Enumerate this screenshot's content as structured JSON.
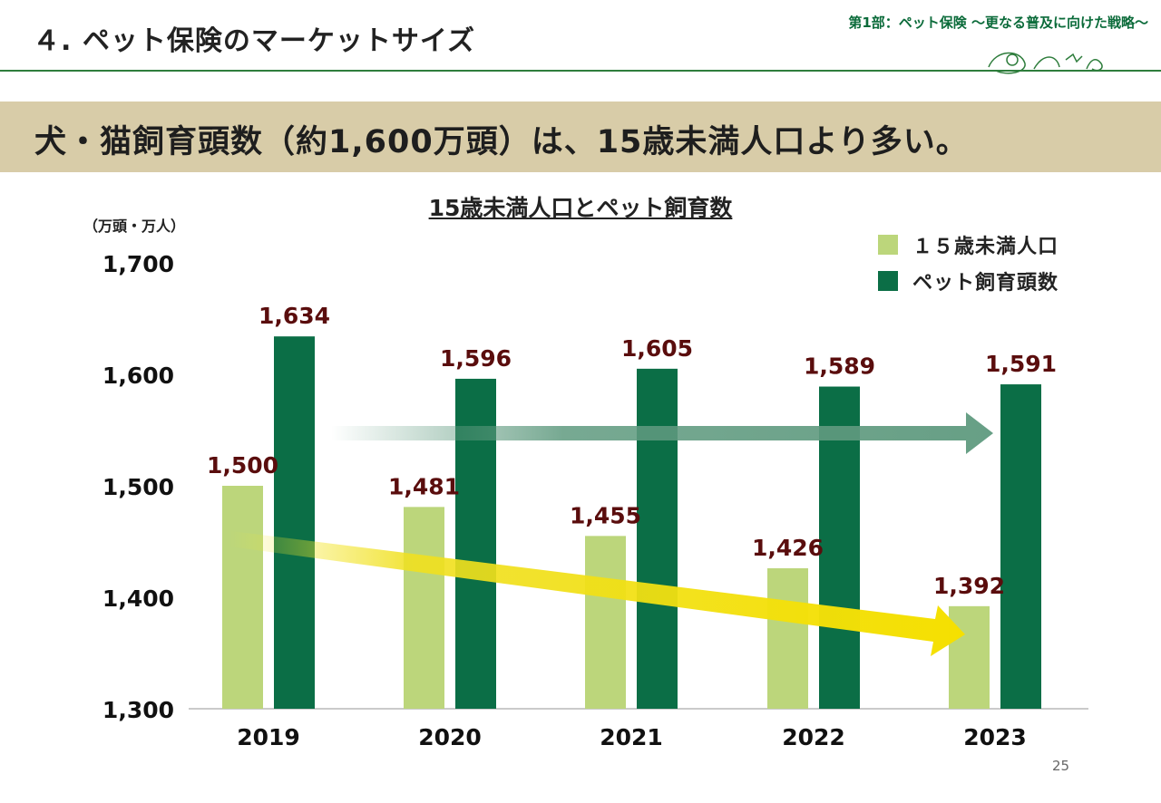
{
  "header": {
    "title": "４. ペット保険のマーケットサイズ",
    "section": "第1部：ペット保険 ～更なる普及に向けた戦略～"
  },
  "banner": {
    "headline": "犬・猫飼育頭数（約1,600万頭）は、15歳未満人口より多い。"
  },
  "chart_data": {
    "type": "bar",
    "title": "15歳未満人口とペット飼育数",
    "unit": "（万頭・万人）",
    "categories": [
      "2019",
      "2020",
      "2021",
      "2022",
      "2023"
    ],
    "series": [
      {
        "name": "１５歳未満人口",
        "color": "#bcd67b",
        "values": [
          1500,
          1481,
          1455,
          1426,
          1392
        ],
        "labels": [
          "1,500",
          "1,481",
          "1,455",
          "1,426",
          "1,392"
        ]
      },
      {
        "name": "ペット飼育頭数",
        "color": "#0b6e46",
        "values": [
          1634,
          1596,
          1605,
          1589,
          1591
        ],
        "labels": [
          "1,634",
          "1,596",
          "1,605",
          "1,589",
          "1,591"
        ]
      }
    ],
    "ylim": [
      1300,
      1700
    ],
    "yticks": [
      1300,
      1400,
      1500,
      1600,
      1700
    ],
    "ytick_labels": [
      "1,300",
      "1,400",
      "1,500",
      "1,600",
      "1,700"
    ],
    "xlabel": "",
    "ylabel": ""
  },
  "colors": {
    "header_rule": "#2e7d3c",
    "banner_bg": "#d8cca8",
    "trend_pet": "#5f9a7f",
    "trend_child": "#f0e020",
    "label_text": "#5a0d0d"
  },
  "footer": {
    "page_number": "25"
  }
}
